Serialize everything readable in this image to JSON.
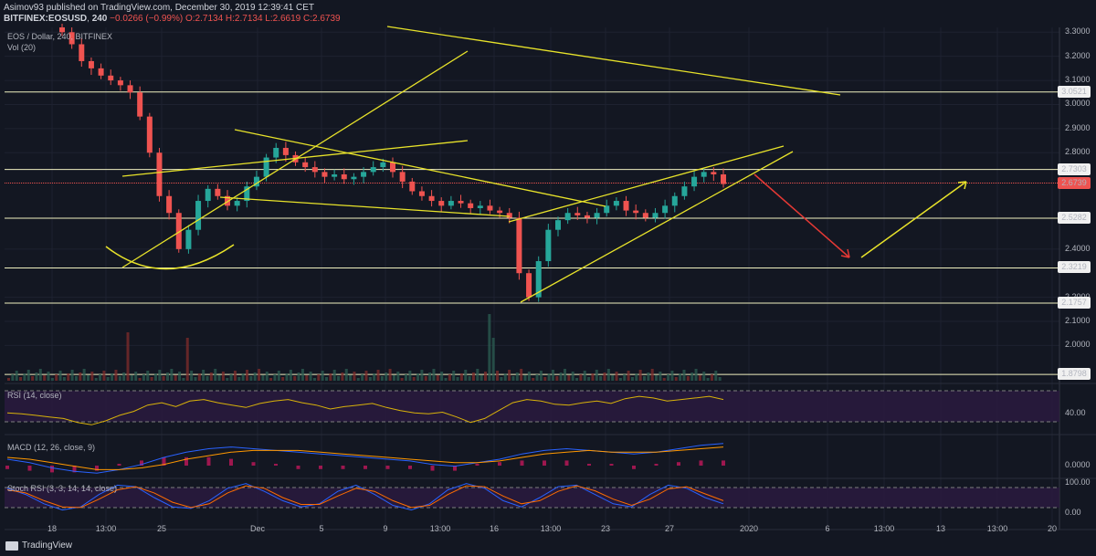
{
  "header": {
    "published_line": "Asimov93 published on TradingView.com, December 30, 2019 12:39:41 CET",
    "symbol": "BITFINEX:EOSUSD",
    "interval": "240",
    "ohlc_line": "−0.0266 (−0.99%) O:2.7134 H:2.7134 L:2.6619 C:2.6739",
    "last_price": "2.6739"
  },
  "panes": {
    "price_title": "EOS / Dollar, 240, BITFINEX",
    "volume_title": "Vol (20)",
    "rsi_title": "RSI (14, close)",
    "macd_title": "MACD (12, 26, close, 9)",
    "stoch_title": "Stoch RSI (3, 3, 14, 14, close)"
  },
  "colors": {
    "background": "#131722",
    "up_candle": "#26a69a",
    "down_candle": "#ef5350",
    "drawing_yellow": "#e8e32a",
    "arrow_red": "#e53935",
    "rsi_band": "#2a1a3e",
    "rsi_line": "#d8b20a",
    "macd_line": "#2962ff",
    "signal_line": "#ff9800",
    "hist_up": "#c2185b",
    "stoch_k": "#2962ff",
    "stoch_d": "#ff6d00"
  },
  "footer": {
    "brand": "TradingView"
  },
  "chart_data": [
    {
      "type": "candlestick",
      "title": "EOS / Dollar, 240, BITFINEX",
      "ylim": [
        1.85,
        3.32
      ],
      "price_ticks": [
        "3.3000",
        "3.2000",
        "3.1000",
        "3.0000",
        "2.9000",
        "2.8000",
        "2.4000",
        "2.2000",
        "2.1000",
        "2.0000"
      ],
      "x_tick_labels": [
        "18",
        "13:00",
        "25",
        "Dec",
        "5",
        "9",
        "13:00",
        "16",
        "13:00",
        "23",
        "27",
        "2020",
        "6",
        "13:00",
        "13",
        "13:00",
        "20"
      ],
      "horizontal_levels": [
        {
          "value": 3.0521,
          "label": "3.0521"
        },
        {
          "value": 2.7303,
          "label": "2.7303"
        },
        {
          "value": 2.5282,
          "label": "2.5282"
        },
        {
          "value": 2.3219,
          "label": "2.3219"
        },
        {
          "value": 2.1757,
          "label": "2.1757"
        },
        {
          "value": 1.8798,
          "label": "1.8798"
        }
      ],
      "last_price": 2.6739,
      "close_series": [
        3.3,
        3.25,
        3.18,
        3.15,
        3.12,
        3.1,
        3.08,
        3.05,
        2.95,
        2.8,
        2.62,
        2.55,
        2.4,
        2.48,
        2.6,
        2.65,
        2.62,
        2.58,
        2.6,
        2.66,
        2.7,
        2.78,
        2.82,
        2.79,
        2.76,
        2.74,
        2.72,
        2.7,
        2.71,
        2.69,
        2.7,
        2.72,
        2.74,
        2.76,
        2.72,
        2.68,
        2.64,
        2.62,
        2.6,
        2.58,
        2.6,
        2.59,
        2.57,
        2.58,
        2.56,
        2.55,
        2.53,
        2.3,
        2.2,
        2.35,
        2.48,
        2.52,
        2.55,
        2.54,
        2.53,
        2.55,
        2.58,
        2.6,
        2.56,
        2.55,
        2.53,
        2.55,
        2.58,
        2.62,
        2.66,
        2.7,
        2.72,
        2.71,
        2.67
      ]
    },
    {
      "type": "bar",
      "title": "Vol (20)"
    },
    {
      "type": "line",
      "title": "RSI (14, close)",
      "ylim": [
        20,
        80
      ],
      "tick_labels": [
        "40.00"
      ],
      "values": [
        45,
        44,
        42,
        40,
        38,
        33,
        30,
        35,
        42,
        47,
        55,
        58,
        53,
        60,
        62,
        58,
        55,
        52,
        57,
        60,
        62,
        58,
        55,
        50,
        53,
        55,
        57,
        52,
        48,
        45,
        44,
        46,
        40,
        33,
        38,
        48,
        58,
        62,
        60,
        56,
        55,
        58,
        60,
        57,
        63,
        66,
        64,
        60,
        62,
        64,
        66,
        62
      ]
    },
    {
      "type": "line",
      "title": "MACD (12, 26, close, 9)",
      "tick_labels": [
        "0.0000"
      ],
      "series": [
        {
          "name": "MACD",
          "values": [
            -0.02,
            -0.04,
            -0.07,
            -0.09,
            -0.1,
            -0.08,
            -0.05,
            -0.01,
            0.02,
            0.04,
            0.05,
            0.04,
            0.03,
            0.02,
            0.01,
            0.0,
            -0.01,
            -0.02,
            -0.03,
            -0.05,
            -0.06,
            -0.04,
            -0.02,
            0.01,
            0.03,
            0.04,
            0.03,
            0.02,
            0.01,
            0.02,
            0.04,
            0.06,
            0.07
          ]
        },
        {
          "name": "Signal",
          "values": [
            -0.01,
            -0.02,
            -0.04,
            -0.06,
            -0.08,
            -0.08,
            -0.07,
            -0.05,
            -0.02,
            0.0,
            0.02,
            0.03,
            0.03,
            0.03,
            0.02,
            0.01,
            0.0,
            -0.01,
            -0.02,
            -0.03,
            -0.04,
            -0.04,
            -0.03,
            -0.01,
            0.01,
            0.02,
            0.03,
            0.02,
            0.02,
            0.02,
            0.03,
            0.04,
            0.05
          ]
        }
      ]
    },
    {
      "type": "line",
      "title": "Stoch RSI (3, 3, 14, 14, close)",
      "ylim": [
        0,
        100
      ],
      "tick_labels": [
        "100.00",
        "0.00"
      ],
      "series": [
        {
          "name": "K",
          "values": [
            80,
            60,
            30,
            10,
            20,
            60,
            90,
            85,
            50,
            20,
            15,
            40,
            80,
            95,
            70,
            40,
            20,
            30,
            70,
            90,
            60,
            25,
            10,
            30,
            75,
            95,
            80,
            40,
            20,
            50,
            85,
            90,
            60,
            30,
            20,
            60,
            90,
            80,
            50,
            30
          ]
        },
        {
          "name": "D",
          "values": [
            75,
            65,
            40,
            20,
            18,
            45,
            75,
            85,
            65,
            35,
            18,
            30,
            65,
            88,
            80,
            50,
            28,
            28,
            55,
            80,
            70,
            40,
            18,
            25,
            60,
            88,
            85,
            55,
            30,
            40,
            70,
            88,
            72,
            45,
            25,
            45,
            78,
            85,
            62,
            40
          ]
        }
      ]
    }
  ]
}
